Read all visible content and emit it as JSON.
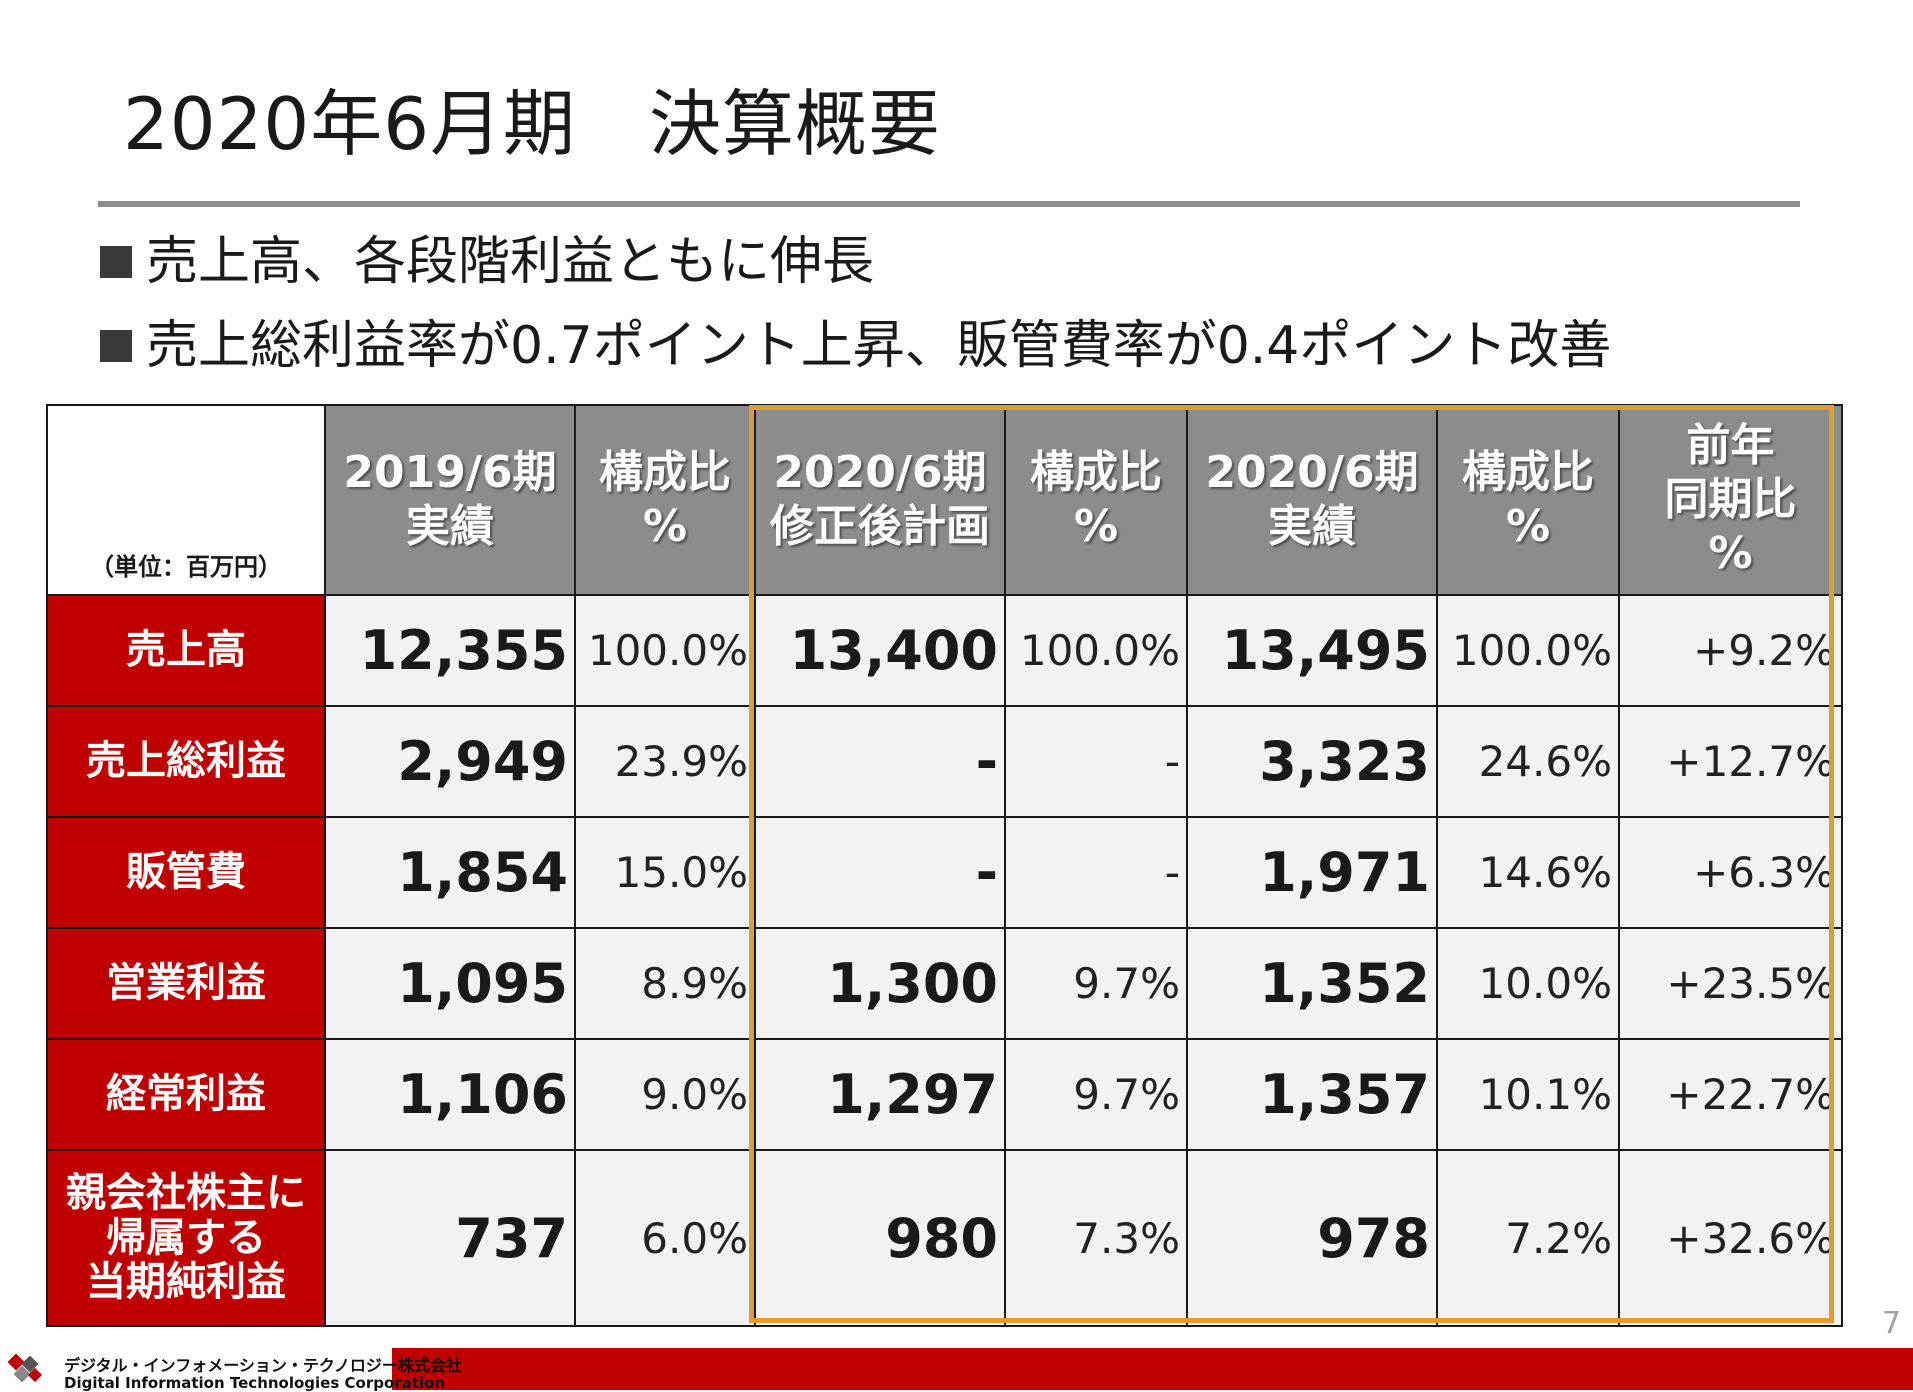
{
  "slide": {
    "title": "2020年6月期　決算概要",
    "bullets": [
      "売上高、各段階利益ともに伸長",
      "売上総利益率が0.7ポイント上昇、販管費率が0.4ポイント改善"
    ],
    "page_number": "7"
  },
  "table": {
    "unit_note": "（単位：百万円）",
    "headers": [
      {
        "line1": "2019/6期",
        "line2": "実績"
      },
      {
        "line1": "構成比",
        "line2": "%"
      },
      {
        "line1": "2020/6期",
        "line2": "修正後計画"
      },
      {
        "line1": "構成比",
        "line2": "%"
      },
      {
        "line1": "2020/6期",
        "line2": "実績"
      },
      {
        "line1": "構成比",
        "line2": "%"
      },
      {
        "line1": "前年",
        "line2": "同期比",
        "line3": "%"
      }
    ],
    "rows": [
      {
        "label": [
          "売上高"
        ],
        "cells": [
          "12,355",
          "100.0%",
          "13,400",
          "100.0%",
          "13,495",
          "100.0%",
          "+9.2%"
        ]
      },
      {
        "label": [
          "売上総利益"
        ],
        "cells": [
          "2,949",
          "23.9%",
          "-",
          "-",
          "3,323",
          "24.6%",
          "+12.7%"
        ]
      },
      {
        "label": [
          "販管費"
        ],
        "cells": [
          "1,854",
          "15.0%",
          "-",
          "-",
          "1,971",
          "14.6%",
          "+6.3%"
        ]
      },
      {
        "label": [
          "営業利益"
        ],
        "cells": [
          "1,095",
          "8.9%",
          "1,300",
          "9.7%",
          "1,352",
          "10.0%",
          "+23.5%"
        ]
      },
      {
        "label": [
          "経常利益"
        ],
        "cells": [
          "1,106",
          "9.0%",
          "1,297",
          "9.7%",
          "1,357",
          "10.1%",
          "+22.7%"
        ]
      },
      {
        "label": [
          "親会社株主に",
          "帰属する",
          "当期純利益"
        ],
        "cells": [
          "737",
          "6.0%",
          "980",
          "7.3%",
          "978",
          "7.2%",
          "+32.6%"
        ]
      }
    ]
  },
  "footer": {
    "company_jp": "デジタル・インフォメーション・テクノロジー株式会社",
    "company_en": "Digital Information Technologies Corporation",
    "logo_icon": "company-logo-icon",
    "accent_color": "#c00000"
  }
}
